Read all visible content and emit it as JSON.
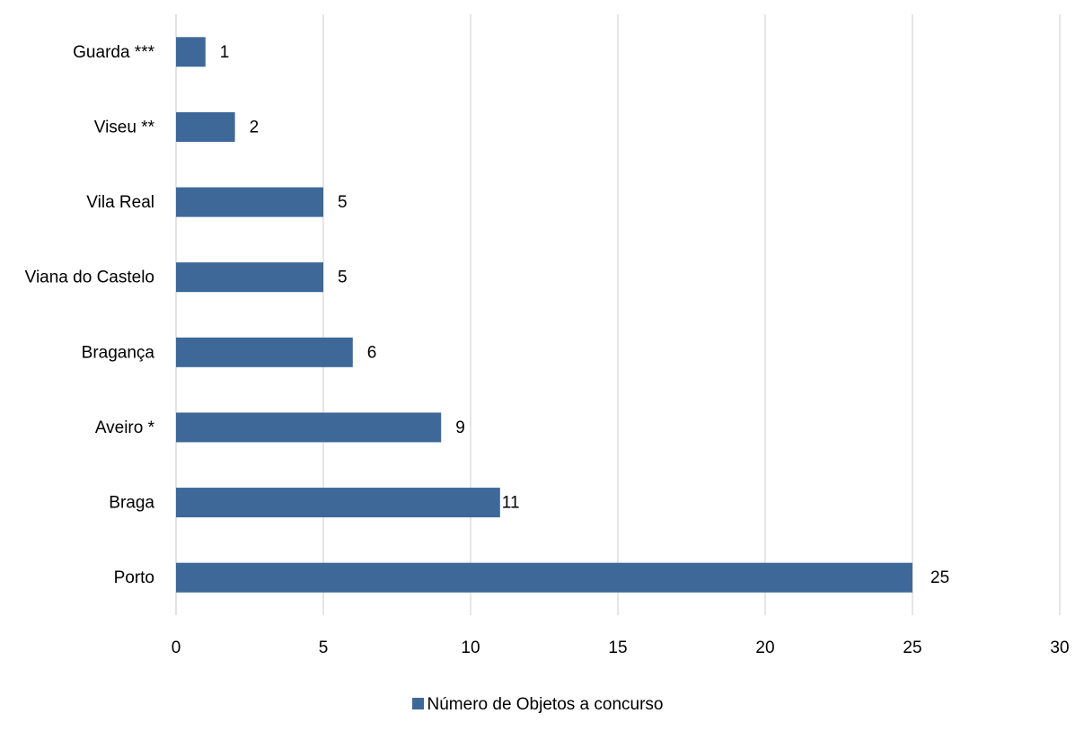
{
  "chart_data": {
    "type": "bar",
    "orientation": "horizontal",
    "categories": [
      "Guarda ***",
      "Viseu **",
      "Vila Real",
      "Viana do Castelo",
      "Bragança",
      "Aveiro *",
      "Braga",
      "Porto"
    ],
    "series": [
      {
        "name": "Número de Objetos a concurso",
        "values": [
          1,
          2,
          5,
          5,
          6,
          9,
          11,
          25
        ],
        "color": "#3e6898"
      }
    ],
    "title": "",
    "xlabel": "",
    "ylabel": "",
    "xlim": [
      0,
      30
    ],
    "xticks": [
      0,
      5,
      10,
      15,
      20,
      25,
      30
    ],
    "grid": "vertical",
    "legend": "bottom-center"
  }
}
